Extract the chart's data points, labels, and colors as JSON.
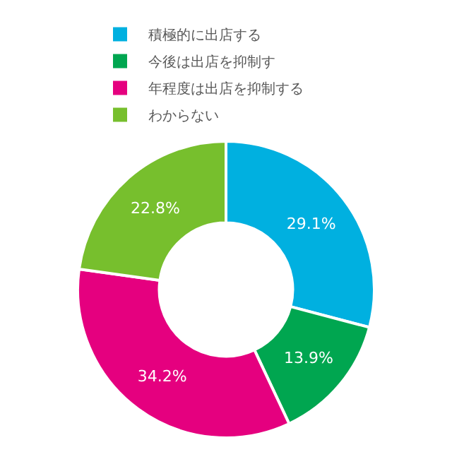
{
  "chart_data": {
    "type": "donut",
    "categories": [
      "積極的に出店する",
      "今後は出店を抑制す",
      "年程度は出店を抑制する",
      "わからない"
    ],
    "values": [
      29.1,
      13.9,
      34.2,
      22.8
    ],
    "colors": [
      "#00b0e0",
      "#00a650",
      "#e5007f",
      "#77bf2d"
    ],
    "value_labels": [
      "29.1%",
      "13.9%",
      "34.2%",
      "22.8%"
    ],
    "legend": "top"
  }
}
